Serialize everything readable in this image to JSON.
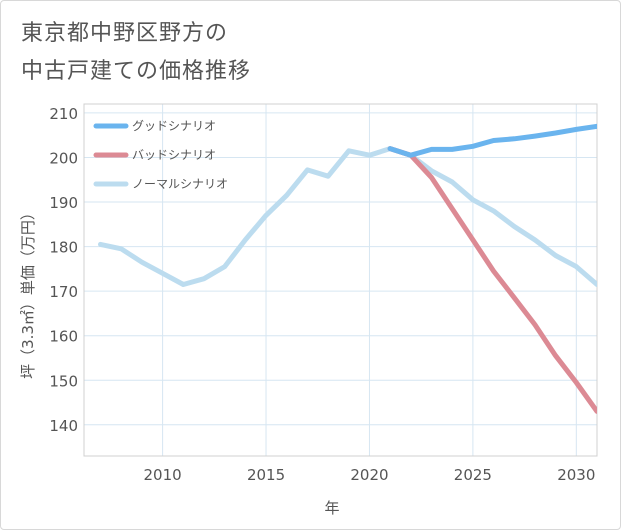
{
  "title": "東京都中野区野方の\n中古戸建ての価格推移",
  "chart_data": {
    "type": "line",
    "title": "東京都中野区野方の中古戸建ての価格推移",
    "xlabel": "年",
    "ylabel": "坪（3.3㎡）単価（万円）",
    "xlim": [
      2006.2,
      2031
    ],
    "ylim": [
      133,
      212
    ],
    "xticks": [
      2010,
      2015,
      2020,
      2025,
      2030
    ],
    "yticks": [
      140,
      150,
      160,
      170,
      180,
      190,
      200,
      210
    ],
    "grid": true,
    "legend_position": "top-left",
    "series": [
      {
        "name": "グッドシナリオ",
        "color": "#6ab4ee",
        "x": [
          2021,
          2022,
          2023,
          2024,
          2025,
          2026,
          2027,
          2028,
          2029,
          2030,
          2031
        ],
        "y": [
          202.0,
          200.5,
          201.8,
          201.8,
          202.5,
          203.8,
          204.2,
          204.8,
          205.5,
          206.3,
          207.0
        ]
      },
      {
        "name": "バッドシナリオ",
        "color": "#dc8a94",
        "x": [
          2021,
          2022,
          2023,
          2024,
          2025,
          2026,
          2027,
          2028,
          2029,
          2030,
          2031
        ],
        "y": [
          202.0,
          200.5,
          195.5,
          188.5,
          181.5,
          174.5,
          168.5,
          162.5,
          155.5,
          149.5,
          143.0
        ]
      },
      {
        "name": "ノーマルシナリオ",
        "color": "#bcdcef",
        "x": [
          2007,
          2008,
          2009,
          2010,
          2011,
          2012,
          2013,
          2014,
          2015,
          2016,
          2017,
          2018,
          2019,
          2020,
          2021,
          2022,
          2023,
          2024,
          2025,
          2026,
          2027,
          2028,
          2029,
          2030,
          2031
        ],
        "y": [
          180.5,
          179.5,
          176.5,
          174.0,
          171.5,
          172.8,
          175.5,
          181.5,
          187.0,
          191.5,
          197.2,
          195.8,
          201.5,
          200.5,
          202.0,
          200.5,
          197.0,
          194.5,
          190.5,
          188.0,
          184.5,
          181.5,
          178.0,
          175.5,
          171.5
        ]
      }
    ]
  }
}
